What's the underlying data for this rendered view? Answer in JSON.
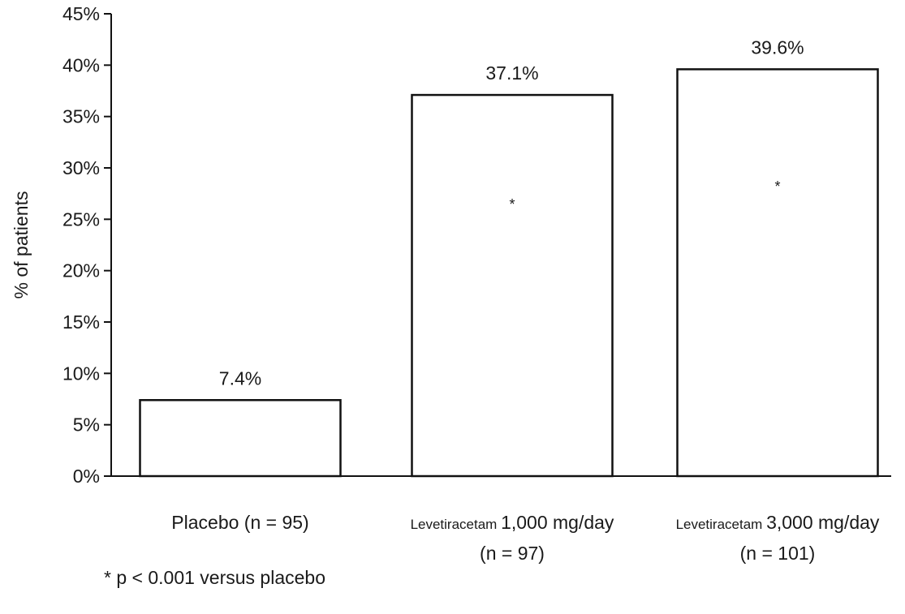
{
  "chart_data": {
    "type": "bar",
    "title": "",
    "xlabel": "",
    "ylabel": "% of patients",
    "ylim": [
      0,
      45
    ],
    "y_ticks": [
      "0%",
      "5%",
      "10%",
      "15%",
      "20%",
      "25%",
      "30%",
      "35%",
      "40%",
      "45%"
    ],
    "grid": false,
    "legend": "none",
    "categories": [
      {
        "prefix": "",
        "main": "Placebo (n = 95)",
        "line2": ""
      },
      {
        "prefix": "Levetiracetam",
        "main": "1,000 mg/day",
        "line2": "(n = 97)"
      },
      {
        "prefix": "Levetiracetam",
        "main": "3,000 mg/day",
        "line2": "(n = 101)"
      }
    ],
    "values": [
      7.4,
      37.1,
      39.6
    ],
    "data_labels": [
      "7.4%",
      "37.1%",
      "39.6%"
    ],
    "significance": [
      "",
      "*",
      "*"
    ],
    "footnote": "* p < 0.001 versus placebo",
    "bar_fill": "#ffffff",
    "bar_stroke": "#111111"
  }
}
